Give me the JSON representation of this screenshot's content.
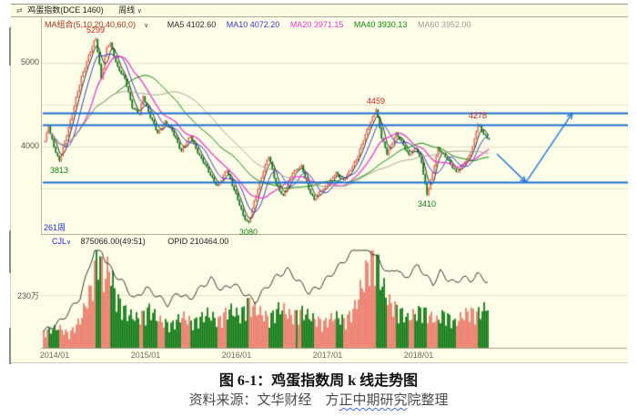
{
  "header": {
    "window_icon": "⇄",
    "instrument": "鸡蛋指数(DCE 1460)",
    "period": "周线",
    "caret": "∨"
  },
  "indicator_bar": {
    "name": "MA组合(5,10,20,40,60,0)",
    "caret": "∨",
    "items": [
      {
        "label": "MA5 4102.60",
        "color": "#2b2b2b"
      },
      {
        "label": "MA10 4072.20",
        "color": "#3c3cc8"
      },
      {
        "label": "MA20 3971.15",
        "color": "#e93ac9"
      },
      {
        "label": "MA40 3930.13",
        "color": "#0c8a0c"
      },
      {
        "label": "MA60 3952.00",
        "color": "#9c9c9c"
      }
    ]
  },
  "footer_bar": {
    "bars_count": "261周",
    "cjl_label": "CJL",
    "cjl_caret": "∨",
    "cjl_value": "875066.00(49:51)",
    "opid_value": "OPID 210464.00"
  },
  "caption": {
    "title": "图 6-1：鸡蛋指数周 k 线走势图",
    "source_prefix": "资料来源：文华财经　方",
    "source_squiggle": "正中期研究",
    "source_suffix": "院整理"
  },
  "chart_data": {
    "type": "candlestick",
    "title": "鸡蛋指数 周线 K线走势图",
    "weeks_total": 245,
    "ylim_main": [
      3000,
      5450
    ],
    "y_ticks": [
      {
        "label": "5000",
        "price": 5000
      },
      {
        "label": "4000",
        "price": 4000
      }
    ],
    "main_gridlines": [
      5000,
      4500,
      4000,
      3500
    ],
    "vol_tick": {
      "label": "230万",
      "value": 230
    },
    "x_axis_years": [
      {
        "label": "2014/01",
        "week": 6
      },
      {
        "label": "2015/01",
        "week": 56
      },
      {
        "label": "2016/01",
        "week": 106
      },
      {
        "label": "2017/01",
        "week": 156
      },
      {
        "label": "2018/01",
        "week": 206
      }
    ],
    "price_labels": [
      {
        "week": 8,
        "price": 3813,
        "text": "3813",
        "dir": "down",
        "pos": "below"
      },
      {
        "week": 28,
        "price": 5299,
        "text": "5299",
        "dir": "up",
        "pos": "above"
      },
      {
        "week": 112,
        "price": 3080,
        "text": "3080",
        "dir": "down",
        "pos": "below"
      },
      {
        "week": 182,
        "price": 4459,
        "text": "4459",
        "dir": "up",
        "pos": "above"
      },
      {
        "week": 210,
        "price": 3410,
        "text": "3410",
        "dir": "down",
        "pos": "below"
      },
      {
        "week": 238,
        "price": 4278,
        "text": "4278",
        "dir": "up",
        "pos": "above"
      }
    ],
    "support_resistance_prices": [
      4400,
      4260,
      3575
    ],
    "forecast_arrow": [
      [
        248.5,
        3913
      ],
      [
        264.5,
        3575
      ],
      [
        290,
        4400
      ]
    ],
    "price_anchors": [
      [
        0,
        4060
      ],
      [
        2,
        4250
      ],
      [
        5,
        4000
      ],
      [
        8,
        3813
      ],
      [
        12,
        4150
      ],
      [
        16,
        4480
      ],
      [
        20,
        4830
      ],
      [
        24,
        5080
      ],
      [
        28,
        5299
      ],
      [
        31,
        4820
      ],
      [
        34,
        5180
      ],
      [
        36,
        5230
      ],
      [
        40,
        4950
      ],
      [
        44,
        4800
      ],
      [
        48,
        4480
      ],
      [
        52,
        4380
      ],
      [
        54,
        4600
      ],
      [
        58,
        4360
      ],
      [
        62,
        4150
      ],
      [
        66,
        4300
      ],
      [
        70,
        4180
      ],
      [
        75,
        3950
      ],
      [
        80,
        4120
      ],
      [
        85,
        3890
      ],
      [
        90,
        3700
      ],
      [
        95,
        3520
      ],
      [
        100,
        3730
      ],
      [
        105,
        3420
      ],
      [
        109,
        3180
      ],
      [
        112,
        3080
      ],
      [
        116,
        3420
      ],
      [
        120,
        3720
      ],
      [
        123,
        3880
      ],
      [
        127,
        3560
      ],
      [
        131,
        3400
      ],
      [
        136,
        3700
      ],
      [
        141,
        3760
      ],
      [
        145,
        3500
      ],
      [
        148,
        3360
      ],
      [
        152,
        3480
      ],
      [
        156,
        3570
      ],
      [
        160,
        3680
      ],
      [
        164,
        3600
      ],
      [
        168,
        3720
      ],
      [
        171,
        3850
      ],
      [
        175,
        4080
      ],
      [
        179,
        4300
      ],
      [
        182,
        4459
      ],
      [
        185,
        4100
      ],
      [
        188,
        3920
      ],
      [
        193,
        4150
      ],
      [
        197,
        4020
      ],
      [
        200,
        3900
      ],
      [
        204,
        3980
      ],
      [
        207,
        3820
      ],
      [
        210,
        3410
      ],
      [
        213,
        3680
      ],
      [
        216,
        3990
      ],
      [
        219,
        3900
      ],
      [
        223,
        3790
      ],
      [
        226,
        3700
      ],
      [
        228,
        3730
      ],
      [
        232,
        3850
      ],
      [
        235,
        4000
      ],
      [
        238,
        4278
      ],
      [
        241,
        4150
      ],
      [
        244,
        4100
      ]
    ],
    "volume_anchors": [
      [
        0,
        70
      ],
      [
        8,
        90
      ],
      [
        14,
        60
      ],
      [
        20,
        120
      ],
      [
        26,
        260
      ],
      [
        30,
        430
      ],
      [
        33,
        300
      ],
      [
        36,
        360
      ],
      [
        40,
        220
      ],
      [
        46,
        150
      ],
      [
        52,
        130
      ],
      [
        58,
        170
      ],
      [
        64,
        120
      ],
      [
        70,
        100
      ],
      [
        76,
        140
      ],
      [
        82,
        110
      ],
      [
        90,
        150
      ],
      [
        96,
        120
      ],
      [
        102,
        170
      ],
      [
        108,
        140
      ],
      [
        112,
        200
      ],
      [
        118,
        160
      ],
      [
        124,
        130
      ],
      [
        130,
        180
      ],
      [
        136,
        140
      ],
      [
        142,
        160
      ],
      [
        148,
        130
      ],
      [
        154,
        110
      ],
      [
        160,
        140
      ],
      [
        166,
        120
      ],
      [
        171,
        180
      ],
      [
        176,
        300
      ],
      [
        180,
        420
      ],
      [
        183,
        390
      ],
      [
        186,
        280
      ],
      [
        190,
        200
      ],
      [
        196,
        160
      ],
      [
        200,
        130
      ],
      [
        204,
        150
      ],
      [
        208,
        170
      ],
      [
        212,
        140
      ],
      [
        216,
        120
      ],
      [
        220,
        150
      ],
      [
        226,
        110
      ],
      [
        230,
        140
      ],
      [
        234,
        160
      ],
      [
        238,
        150
      ],
      [
        242,
        170
      ],
      [
        244,
        190
      ]
    ],
    "oi_anchors": [
      [
        0,
        70
      ],
      [
        10,
        120
      ],
      [
        20,
        220
      ],
      [
        26,
        380
      ],
      [
        30,
        465
      ],
      [
        34,
        380
      ],
      [
        38,
        330
      ],
      [
        44,
        280
      ],
      [
        50,
        210
      ],
      [
        56,
        260
      ],
      [
        62,
        230
      ],
      [
        68,
        190
      ],
      [
        74,
        240
      ],
      [
        80,
        210
      ],
      [
        86,
        260
      ],
      [
        92,
        300
      ],
      [
        98,
        250
      ],
      [
        104,
        280
      ],
      [
        110,
        240
      ],
      [
        116,
        200
      ],
      [
        122,
        260
      ],
      [
        128,
        310
      ],
      [
        134,
        340
      ],
      [
        140,
        290
      ],
      [
        146,
        240
      ],
      [
        152,
        270
      ],
      [
        158,
        320
      ],
      [
        164,
        370
      ],
      [
        170,
        420
      ],
      [
        174,
        470
      ],
      [
        178,
        440
      ],
      [
        182,
        400
      ],
      [
        186,
        360
      ],
      [
        190,
        320
      ],
      [
        194,
        350
      ],
      [
        198,
        300
      ],
      [
        202,
        330
      ],
      [
        206,
        360
      ],
      [
        210,
        310
      ],
      [
        214,
        280
      ],
      [
        218,
        330
      ],
      [
        222,
        300
      ],
      [
        226,
        280
      ],
      [
        230,
        310
      ],
      [
        234,
        290
      ],
      [
        238,
        320
      ],
      [
        242,
        300
      ],
      [
        244,
        290
      ]
    ],
    "ma_periods": [
      5,
      10,
      20,
      40,
      60
    ],
    "ma_colors": [
      "#2b2b2b",
      "#3c3cc8",
      "#e93ac9",
      "#0c8a0c",
      "#a9a795"
    ],
    "colors": {
      "background": "#fdfde8",
      "grid": "#e3e0c6",
      "up": "#cf2a1c",
      "up_fill": "#ec7c6c",
      "down": "#117a17",
      "sr_line": "#1d6fd1",
      "arrow": "#2a78d8",
      "oi_line": "#3a3a38",
      "label_up": "#cc2a1e",
      "label_down": "#0f7d12"
    }
  }
}
